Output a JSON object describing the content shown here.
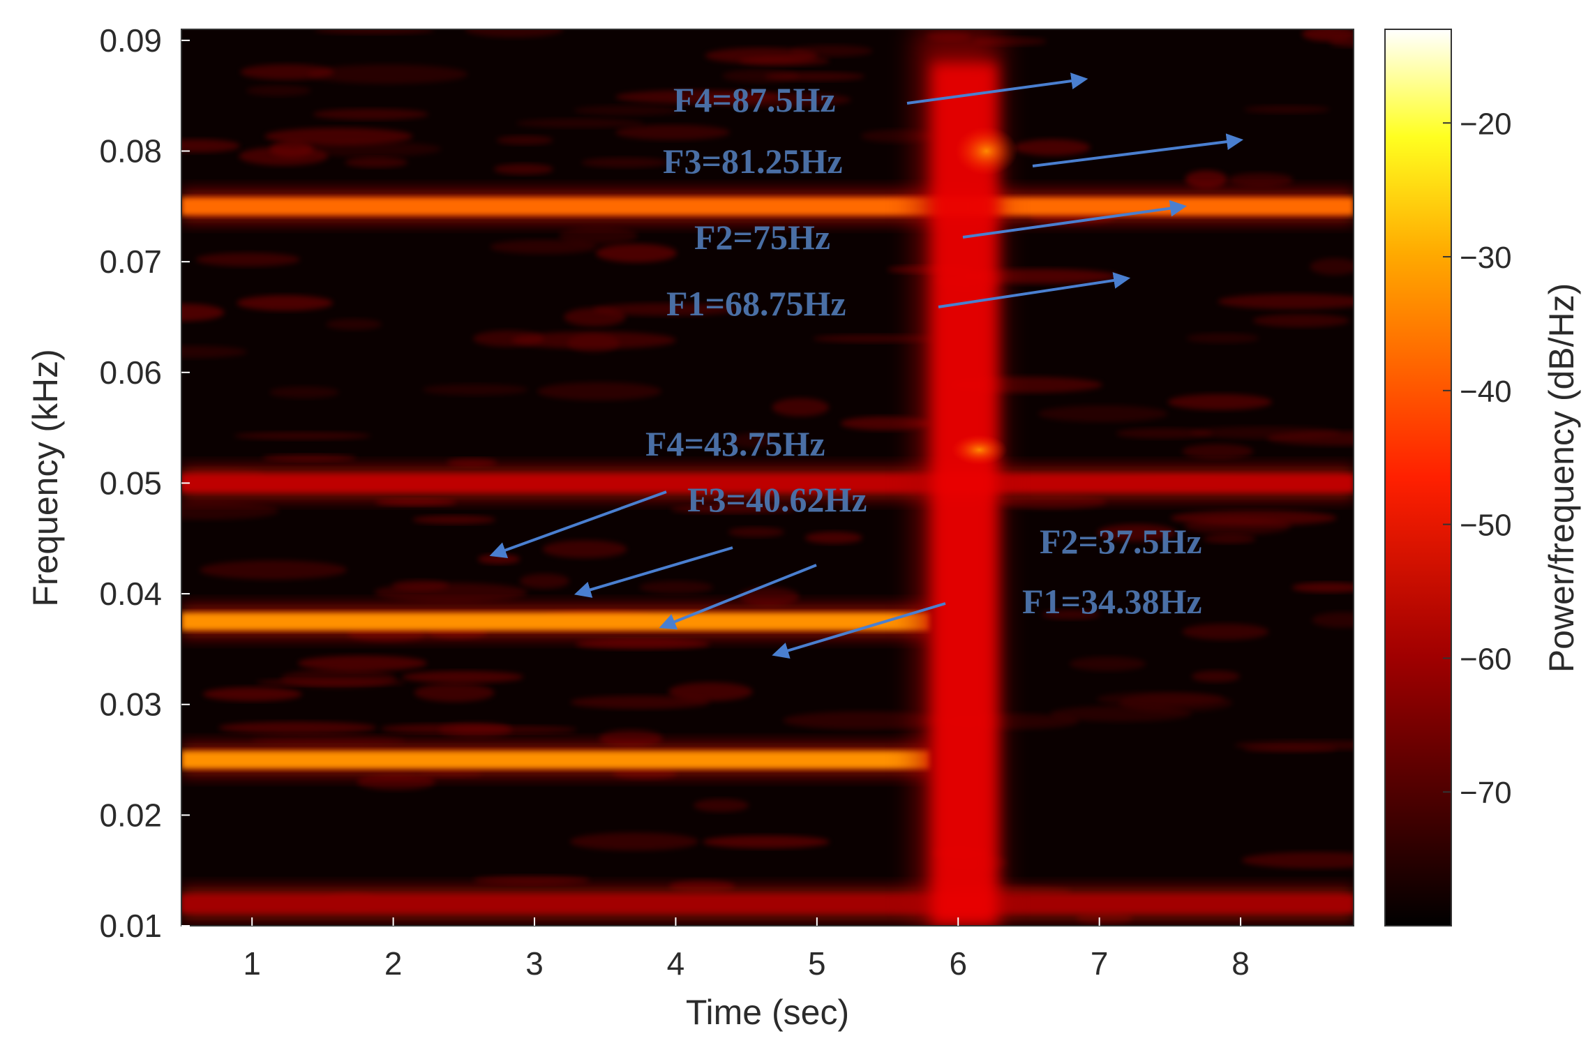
{
  "chart_data": {
    "type": "heatmap",
    "title": "",
    "xlabel": "Time (sec)",
    "ylabel": "Frequency (kHz)",
    "xlim": [
      0.5,
      8.8
    ],
    "ylim": [
      0.01,
      0.091
    ],
    "xticks": [
      1,
      2,
      3,
      4,
      5,
      6,
      7,
      8
    ],
    "xtick_labels": [
      "1",
      "2",
      "3",
      "4",
      "5",
      "6",
      "7",
      "8"
    ],
    "yticks": [
      0.01,
      0.02,
      0.03,
      0.04,
      0.05,
      0.06,
      0.07,
      0.08,
      0.09
    ],
    "ytick_labels": [
      "0.01",
      "0.02",
      "0.03",
      "0.04",
      "0.05",
      "0.06",
      "0.07",
      "0.08",
      "0.09"
    ],
    "colormap": "hot",
    "colorbar": {
      "label": "Power/frequency (dB/Hz)",
      "range": [
        -80,
        -13
      ],
      "ticks": [
        -20,
        -30,
        -40,
        -50,
        -60,
        -70
      ],
      "tick_labels": [
        "−20",
        "−30",
        "−40",
        "−50",
        "−60",
        "−70"
      ]
    },
    "bands": [
      {
        "freq_khz": 0.075,
        "t_start": 0.5,
        "t_end": 8.8,
        "power_db": -42
      },
      {
        "freq_khz": 0.0375,
        "t_start": 0.5,
        "t_end": 5.8,
        "power_db": -38
      },
      {
        "freq_khz": 0.025,
        "t_start": 0.5,
        "t_end": 5.8,
        "power_db": -38
      },
      {
        "freq_khz": 0.05,
        "t_start": 0.5,
        "t_end": 8.8,
        "power_db": -60
      },
      {
        "freq_khz": 0.012,
        "t_start": 0.5,
        "t_end": 8.8,
        "power_db": -63
      }
    ],
    "burst": {
      "t_center": 6.0,
      "t_width": 0.5,
      "f_range": [
        0.01,
        0.091
      ],
      "power_db": -55
    },
    "annotations": [
      {
        "text": "F4=87.5Hz",
        "arrow_to": {
          "t": 6.9,
          "f": 0.0865
        }
      },
      {
        "text": "F3=81.25Hz",
        "arrow_to": {
          "t": 8.0,
          "f": 0.081
        }
      },
      {
        "text": "F2=75Hz",
        "arrow_to": {
          "t": 7.6,
          "f": 0.075
        }
      },
      {
        "text": "F1=68.75Hz",
        "arrow_to": {
          "t": 7.2,
          "f": 0.0685
        }
      },
      {
        "text": "F4=43.75Hz",
        "arrow_to": {
          "t": 2.7,
          "f": 0.0435
        }
      },
      {
        "text": "F3=40.62Hz",
        "arrow_to": {
          "t": 3.3,
          "f": 0.04
        }
      },
      {
        "text": "F2=37.5Hz",
        "arrow_to": {
          "t": 3.9,
          "f": 0.037
        }
      },
      {
        "text": "F1=34.38Hz",
        "arrow_to": {
          "t": 4.7,
          "f": 0.0345
        }
      }
    ]
  }
}
